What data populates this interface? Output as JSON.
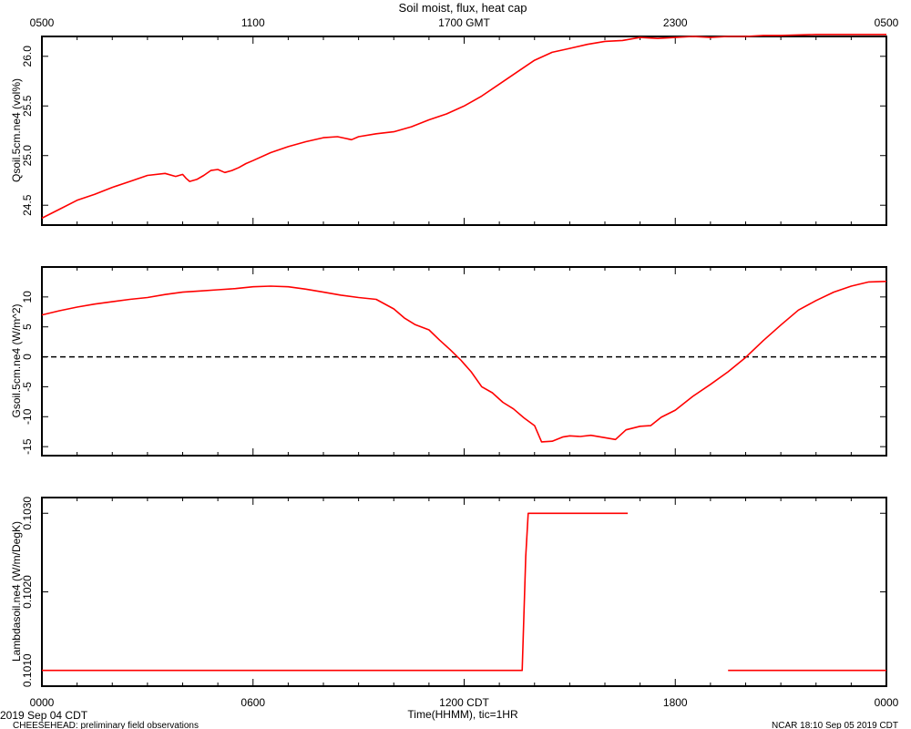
{
  "header": {
    "title": "Soil moist, flux, heat cap"
  },
  "footer": {
    "date_label": "2019 Sep 04 CDT",
    "project_label": "CHEESEHEAD: preliminary field observations",
    "credit_label": "NCAR 18:10 Sep 05 2019 CDT",
    "xlabel": "Time(HHMM), tic=1HR"
  },
  "colors": {
    "series": "#ff0000",
    "axes": "#000000",
    "zero_line": "#000000"
  },
  "chart_data": {
    "type": "line",
    "x_unit": "hours since 0000 CDT",
    "x_range": [
      0,
      24
    ],
    "bottom_ticks": [
      {
        "x": 0,
        "label": "0000"
      },
      {
        "x": 6,
        "label": "0600"
      },
      {
        "x": 12,
        "label": "1200 CDT"
      },
      {
        "x": 18,
        "label": "1800"
      },
      {
        "x": 24,
        "label": "0000"
      }
    ],
    "top_ticks": [
      {
        "x": 0,
        "label": "0500"
      },
      {
        "x": 6,
        "label": "1100"
      },
      {
        "x": 12,
        "label": "1700 GMT"
      },
      {
        "x": 18,
        "label": "2300"
      },
      {
        "x": 24,
        "label": "0500"
      }
    ],
    "panels": [
      {
        "ylabel": "Qsoil.5cm.ne4 (vol%)",
        "ylim": [
          24.3,
          26.2
        ],
        "yticks": [
          24.5,
          25.0,
          25.5,
          26.0
        ],
        "ytick_labels": [
          "24.5",
          "25.0",
          "25.5",
          "26.0"
        ],
        "zero_line": false,
        "series": [
          {
            "x": [
              0,
              0.5,
              1,
              1.5,
              2,
              2.5,
              3,
              3.5,
              3.8,
              4.0,
              4.1,
              4.2,
              4.4,
              4.6,
              4.8,
              5.0,
              5.2,
              5.4,
              5.6,
              5.8,
              6.0,
              6.5,
              7.0,
              7.5,
              8.0,
              8.4,
              8.8,
              9.0,
              9.5,
              10.0,
              10.5,
              11.0,
              11.5,
              12.0,
              12.5,
              13.0,
              13.5,
              14.0,
              14.5,
              15.0,
              15.5,
              16.0,
              16.5,
              17.0,
              17.5,
              18.0,
              18.5,
              19.0,
              19.5,
              20.0,
              20.5,
              21.0,
              22.0,
              23.0,
              24.0
            ],
            "y": [
              24.37,
              24.46,
              24.55,
              24.61,
              24.68,
              24.74,
              24.8,
              24.82,
              24.79,
              24.81,
              24.77,
              24.74,
              24.76,
              24.8,
              24.85,
              24.86,
              24.83,
              24.85,
              24.88,
              24.92,
              24.95,
              25.03,
              25.09,
              25.14,
              25.18,
              25.19,
              25.16,
              25.19,
              25.22,
              25.24,
              25.29,
              25.36,
              25.42,
              25.5,
              25.6,
              25.72,
              25.84,
              25.96,
              26.04,
              26.08,
              26.12,
              26.15,
              26.16,
              26.19,
              26.18,
              26.19,
              26.2,
              26.19,
              26.2,
              26.2,
              26.21,
              26.21,
              26.22,
              26.22,
              26.22
            ]
          }
        ]
      },
      {
        "ylabel": "Gsoil.5cm.ne4 (W/m^2)",
        "ylim": [
          -16.5,
          15
        ],
        "yticks": [
          -15,
          -10,
          -5,
          0,
          5,
          10
        ],
        "ytick_labels": [
          "-15",
          "-10",
          "-5",
          "0",
          "5",
          "10"
        ],
        "zero_line": true,
        "series": [
          {
            "x": [
              0,
              0.5,
              1,
              1.5,
              2,
              2.5,
              3,
              3.5,
              4,
              4.5,
              5,
              5.5,
              6,
              6.5,
              7,
              7.5,
              8,
              8.5,
              9,
              9.5,
              10,
              10.3,
              10.6,
              11,
              11.3,
              11.6,
              11.9,
              12.2,
              12.5,
              12.8,
              13.1,
              13.4,
              13.7,
              14.0,
              14.2,
              14.5,
              14.8,
              15.0,
              15.3,
              15.6,
              16.0,
              16.3,
              16.6,
              17.0,
              17.3,
              17.6,
              18.0,
              18.5,
              19.0,
              19.5,
              20.0,
              20.5,
              21.0,
              21.5,
              22.0,
              22.5,
              23.0,
              23.5,
              24.0
            ],
            "y": [
              7.0,
              7.7,
              8.3,
              8.8,
              9.2,
              9.6,
              9.9,
              10.4,
              10.8,
              11.0,
              11.2,
              11.4,
              11.7,
              11.8,
              11.7,
              11.3,
              10.8,
              10.3,
              9.9,
              9.6,
              8.0,
              6.5,
              5.4,
              4.5,
              2.8,
              1.2,
              -0.5,
              -2.5,
              -5.0,
              -6.0,
              -7.6,
              -8.7,
              -10.2,
              -11.5,
              -14.2,
              -14.1,
              -13.4,
              -13.2,
              -13.3,
              -13.1,
              -13.5,
              -13.8,
              -12.2,
              -11.6,
              -11.5,
              -10.1,
              -8.9,
              -6.6,
              -4.6,
              -2.5,
              -0.1,
              2.7,
              5.3,
              7.8,
              9.4,
              10.8,
              11.8,
              12.5,
              12.6
            ]
          }
        ]
      },
      {
        "ylabel": "Lambdasoil.ne4 (W/m/DegK)",
        "ylim": [
          0.1008,
          0.1032
        ],
        "yticks": [
          0.101,
          0.102,
          0.103
        ],
        "ytick_labels": [
          "0.1010",
          "0.1020",
          "0.1030"
        ],
        "zero_line": false,
        "series": [
          {
            "x": [
              0,
              13.65,
              13.75,
              13.82,
              16.65
            ],
            "y": [
              0.101,
              0.101,
              0.10245,
              0.103,
              0.103
            ]
          },
          {
            "x": [
              19.5,
              24.0
            ],
            "y": [
              0.101,
              0.101
            ]
          }
        ]
      }
    ]
  }
}
